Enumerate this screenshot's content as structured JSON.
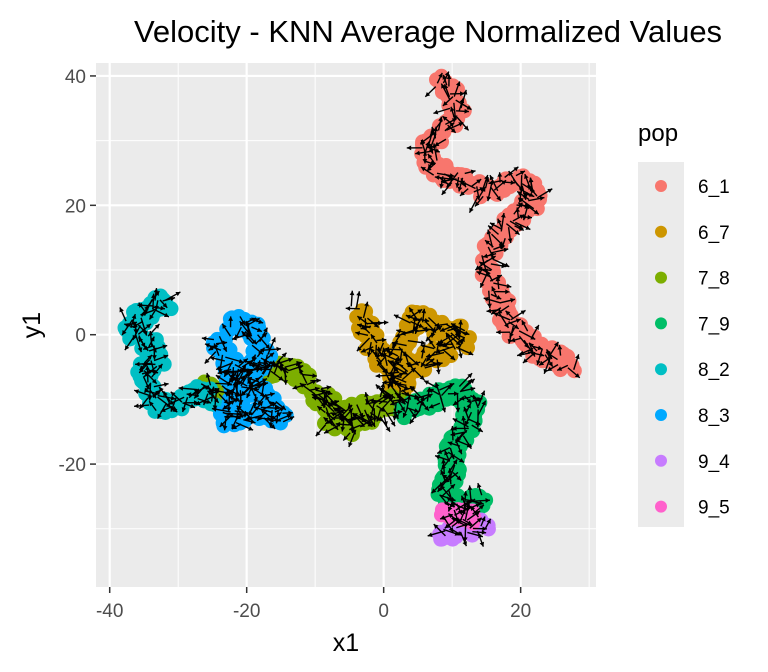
{
  "chart_data": {
    "type": "scatter",
    "title": "Velocity - KNN Average Normalized Values",
    "xlabel": "x1",
    "ylabel": "y1",
    "xlim": [
      -42,
      31
    ],
    "ylim": [
      -39,
      42
    ],
    "x_ticks": [
      -40,
      -20,
      0,
      20
    ],
    "y_ticks": [
      -20,
      0,
      20,
      40
    ],
    "x_tick_labels": [
      "-40",
      "-20",
      "0",
      "20"
    ],
    "y_tick_labels": [
      "-20",
      "0",
      "20",
      "40"
    ],
    "grid": true,
    "panel_background": "#ebebeb",
    "arrow_color": "#000000",
    "legend": {
      "title": "pop",
      "placement": "right"
    },
    "series": [
      {
        "name": "6_1",
        "color": "#F8766D",
        "path": [
          [
            8,
            39
          ],
          [
            10,
            37
          ],
          [
            11,
            34
          ],
          [
            9,
            32
          ],
          [
            7,
            30
          ],
          [
            6,
            28
          ],
          [
            7,
            26
          ],
          [
            9,
            25
          ],
          [
            11,
            24
          ],
          [
            13,
            23
          ],
          [
            15,
            22
          ],
          [
            17,
            23
          ],
          [
            19,
            24
          ],
          [
            21,
            23
          ],
          [
            22,
            21
          ],
          [
            20,
            19
          ],
          [
            18,
            17
          ],
          [
            16,
            14
          ],
          [
            15,
            11
          ],
          [
            16,
            8
          ],
          [
            17,
            5
          ],
          [
            18,
            2
          ],
          [
            20,
            0
          ],
          [
            22,
            -2
          ],
          [
            24,
            -3
          ],
          [
            26,
            -4
          ],
          [
            27,
            -5
          ]
        ]
      },
      {
        "name": "6_7",
        "color": "#CD9600",
        "path": [
          [
            -4,
            4
          ],
          [
            -3,
            2
          ],
          [
            -2,
            0
          ],
          [
            -1,
            -2
          ],
          [
            0,
            -4
          ],
          [
            1,
            -6
          ],
          [
            2,
            -8
          ],
          [
            3,
            -9
          ],
          [
            2,
            -4
          ],
          [
            3,
            -1
          ],
          [
            4,
            1
          ],
          [
            5,
            3
          ],
          [
            6,
            2
          ],
          [
            8,
            1
          ],
          [
            10,
            1
          ],
          [
            11,
            0
          ],
          [
            12,
            -1
          ],
          [
            10,
            -2
          ],
          [
            8,
            -3
          ],
          [
            6,
            -4
          ],
          [
            4,
            -5
          ]
        ]
      },
      {
        "name": "7_8",
        "color": "#7CAE00",
        "path": [
          [
            -27,
            -8
          ],
          [
            -24,
            -9
          ],
          [
            -21,
            -8
          ],
          [
            -18,
            -6
          ],
          [
            -15,
            -5
          ],
          [
            -13,
            -6
          ],
          [
            -11,
            -8
          ],
          [
            -9,
            -10
          ],
          [
            -7,
            -12
          ],
          [
            -5,
            -13
          ],
          [
            -3,
            -13
          ],
          [
            -1,
            -12
          ],
          [
            1,
            -11
          ],
          [
            2,
            -10
          ],
          [
            -8,
            -13
          ],
          [
            -4,
            -15
          ]
        ]
      },
      {
        "name": "7_9",
        "color": "#00BE67",
        "path": [
          [
            3,
            -12
          ],
          [
            5,
            -11
          ],
          [
            7,
            -10
          ],
          [
            9,
            -9
          ],
          [
            11,
            -9
          ],
          [
            13,
            -10
          ],
          [
            13,
            -12
          ],
          [
            12,
            -14
          ],
          [
            11,
            -16
          ],
          [
            10,
            -18
          ],
          [
            10,
            -20
          ],
          [
            10,
            -22
          ],
          [
            9,
            -23
          ],
          [
            9,
            -25
          ],
          [
            11,
            -26
          ],
          [
            13,
            -26
          ],
          [
            14,
            -25
          ]
        ]
      },
      {
        "name": "8_2",
        "color": "#00BFC4",
        "path": [
          [
            -34,
            5
          ],
          [
            -32,
            5
          ],
          [
            -35,
            3
          ],
          [
            -37,
            2
          ],
          [
            -36,
            0
          ],
          [
            -34,
            -2
          ],
          [
            -33,
            -4
          ],
          [
            -35,
            -5
          ],
          [
            -34,
            -9
          ],
          [
            -33,
            -11
          ],
          [
            -31,
            -11
          ],
          [
            -29,
            -10
          ],
          [
            -27,
            -9
          ],
          [
            -25,
            -10
          ]
        ]
      },
      {
        "name": "8_3",
        "color": "#00A9FF",
        "path": [
          [
            -22,
            2
          ],
          [
            -20,
            2
          ],
          [
            -19,
            0
          ],
          [
            -18,
            -2
          ],
          [
            -17,
            -4
          ],
          [
            -19,
            -5
          ],
          [
            -21,
            -6
          ],
          [
            -22,
            -7
          ],
          [
            -21,
            -9
          ],
          [
            -22,
            -11
          ],
          [
            -23,
            -13
          ],
          [
            -21,
            -13
          ],
          [
            -18,
            -12
          ],
          [
            -16,
            -12
          ],
          [
            -15,
            -13
          ],
          [
            -24,
            -2
          ],
          [
            -23,
            0
          ]
        ]
      },
      {
        "name": "9_4",
        "color": "#C77CFF",
        "path": [
          [
            9,
            -31
          ],
          [
            11,
            -30
          ],
          [
            13,
            -30
          ],
          [
            15,
            -29
          ]
        ]
      },
      {
        "name": "9_5",
        "color": "#FF61CC",
        "path": [
          [
            9,
            -28
          ],
          [
            11,
            -28
          ],
          [
            13,
            -28
          ],
          [
            12,
            -29
          ]
        ]
      }
    ]
  }
}
